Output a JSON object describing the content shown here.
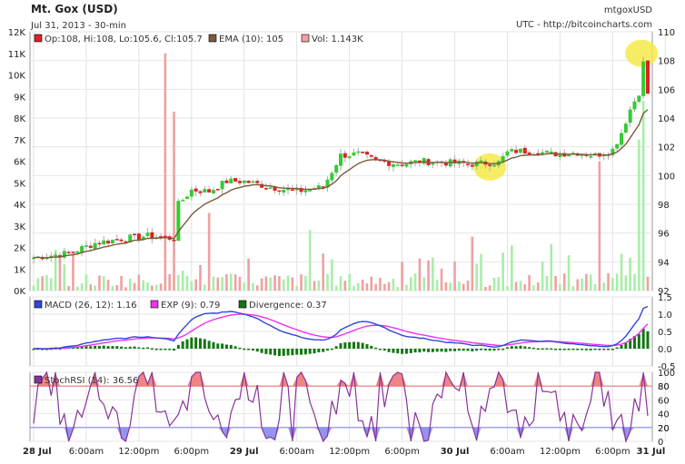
{
  "header": {
    "title": "Mt. Gox (USD)",
    "subtitle": "Jul 31, 2013 - 30-min",
    "symbol": "mtgoxUSD",
    "source": "UTC - http://bitcoincharts.com"
  },
  "colors": {
    "up": "#33cc33",
    "down": "#dd2222",
    "ema": "#7a5a3a",
    "vol_up": "#a9eda9",
    "vol_down": "#f0a0a0",
    "macd": "#3344dd",
    "exp": "#ee33ee",
    "divergence": "#117711",
    "stoch": "#883399",
    "upper_band": "#ee7777",
    "lower_band": "#8888ee",
    "highlight": "#f5ea4a"
  },
  "chart_data": [
    {
      "type": "candlestick",
      "panel": "price",
      "legend": {
        "ohlc": "Op:108, Hi:108, Lo:105.6, Cl:105.7",
        "ema": "EMA (10): 105",
        "vol": "Vol: 1.143K"
      },
      "price_axis": {
        "range": [
          92,
          110
        ],
        "ticks": [
          "92",
          "94",
          "96",
          "98",
          "100",
          "102",
          "104",
          "106",
          "108",
          "110"
        ]
      },
      "volume_axis": {
        "range": [
          0,
          12000
        ],
        "ticks": [
          "0K",
          "1K",
          "2K",
          "3K",
          "4K",
          "5K",
          "6K",
          "7K",
          "8K",
          "9K",
          "10K",
          "11K",
          "12K"
        ]
      },
      "x_ticks": [
        {
          "label": "28 Jul",
          "bold": true
        },
        {
          "label": "6:00am"
        },
        {
          "label": "12:00pm"
        },
        {
          "label": "6:00pm"
        },
        {
          "label": "29 Jul",
          "bold": true
        },
        {
          "label": "6:00am"
        },
        {
          "label": "12:00pm"
        },
        {
          "label": "6:00pm"
        },
        {
          "label": "30 Jul",
          "bold": true
        },
        {
          "label": "6:00am"
        },
        {
          "label": "12:00pm"
        },
        {
          "label": "6:00pm"
        },
        {
          "label": "31 Jul",
          "bold": true
        }
      ],
      "price_anchors": [
        [
          0,
          94.3
        ],
        [
          8,
          94.6
        ],
        [
          14,
          95.3
        ],
        [
          20,
          95.6
        ],
        [
          26,
          95.8
        ],
        [
          30,
          95.7
        ],
        [
          32,
          95.6
        ],
        [
          33,
          98.0
        ],
        [
          36,
          99.0
        ],
        [
          40,
          98.9
        ],
        [
          44,
          99.6
        ],
        [
          48,
          99.6
        ],
        [
          54,
          99.2
        ],
        [
          60,
          98.9
        ],
        [
          66,
          99.2
        ],
        [
          68,
          100.3
        ],
        [
          70,
          101.4
        ],
        [
          74,
          101.5
        ],
        [
          78,
          101.0
        ],
        [
          84,
          100.8
        ],
        [
          88,
          101.0
        ],
        [
          94,
          100.9
        ],
        [
          100,
          100.8
        ],
        [
          104,
          100.9
        ],
        [
          106,
          100.9
        ],
        [
          108,
          101.6
        ],
        [
          110,
          101.7
        ],
        [
          114,
          101.7
        ],
        [
          118,
          101.5
        ],
        [
          124,
          101.6
        ],
        [
          128,
          101.4
        ],
        [
          132,
          101.8
        ],
        [
          134,
          103.0
        ],
        [
          136,
          104.6
        ],
        [
          138,
          105.8
        ],
        [
          139,
          107.8
        ],
        [
          140,
          105.7
        ]
      ],
      "volume_spikes": {
        "30": 11000,
        "32": 8300,
        "40": 3600,
        "63": 2800,
        "100": 2500,
        "129": 6000,
        "138": 7000,
        "139": 8800
      },
      "highlights": [
        {
          "x_index": 104,
          "price": 100.6
        },
        {
          "x_index": 138.6,
          "price": 108.5
        }
      ]
    },
    {
      "type": "line+bar",
      "panel": "macd",
      "legend": {
        "macd": "MACD (26, 12): 1.16",
        "exp": "EXP (9): 0.79",
        "div": "Divergence: 0.37"
      },
      "y_axis": {
        "range": [
          -0.5,
          1.5
        ],
        "ticks": [
          "-0.5",
          "0.0",
          "0.5",
          "1.0",
          "1.5"
        ]
      }
    },
    {
      "type": "line",
      "panel": "stochastic",
      "legend": {
        "stoch": "StochRSI (14): 36.56"
      },
      "y_axis": {
        "range": [
          0,
          100
        ],
        "ticks": [
          "0",
          "20",
          "40",
          "60",
          "80",
          "100"
        ]
      },
      "upper_band": 80,
      "lower_band": 20,
      "band_labels": {
        "upper": "80",
        "lower": "20"
      }
    }
  ]
}
